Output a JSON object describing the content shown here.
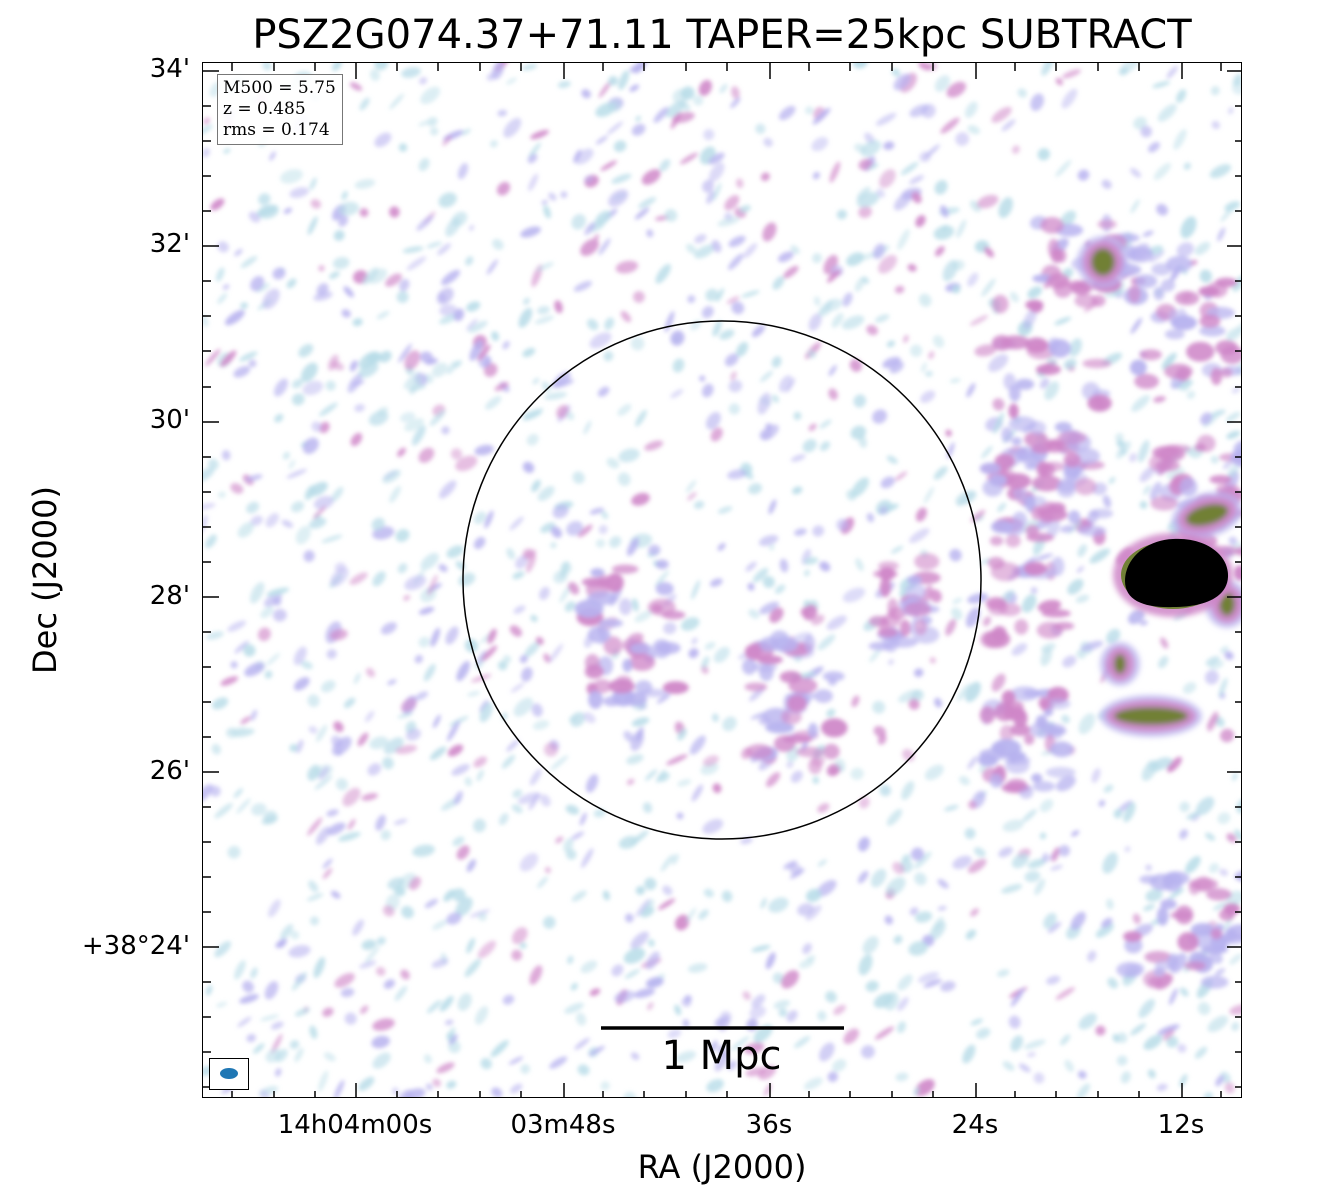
{
  "title": "PSZ2G074.37+71.11 TAPER=25kpc SUBTRACT",
  "info": {
    "m500": "M500 = 5.75",
    "z": "z = 0.485",
    "rms": "rms = 0.174"
  },
  "axes": {
    "xlabel": "RA (J2000)",
    "ylabel": "Dec (J2000)",
    "xticks": [
      "14h04m00s",
      "03m48s",
      "36s",
      "24s",
      "12s"
    ],
    "yticks": [
      "34'",
      "32'",
      "30'",
      "28'",
      "26'",
      "+38°24'"
    ]
  },
  "scalebar": {
    "label": "1 Mpc"
  },
  "colors": {
    "light_blue": "#b8dce8",
    "lavender": "#b7b2ef",
    "mauve": "#cf86c8",
    "olive": "#6d7f2e",
    "core": "#000000",
    "circle": "#000000",
    "beam": "#1f77b4"
  }
}
